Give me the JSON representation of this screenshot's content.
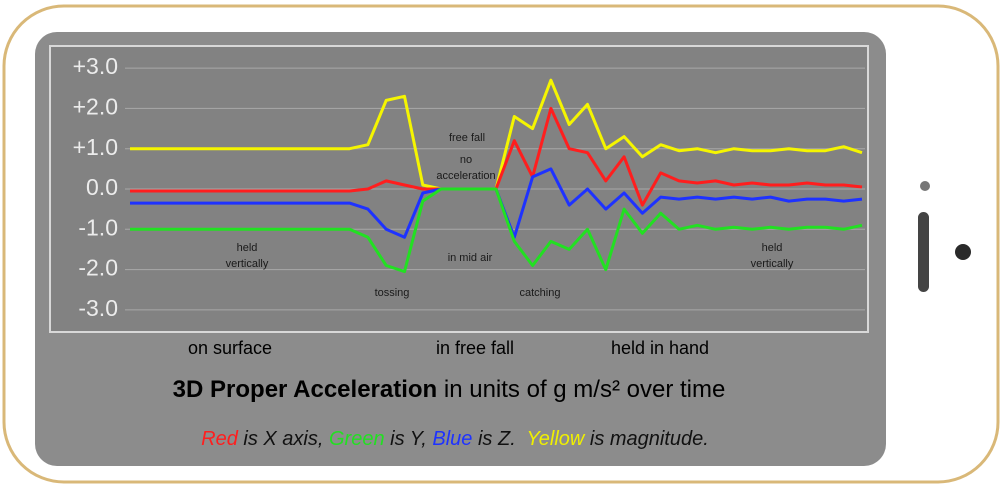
{
  "chart_data": {
    "type": "line",
    "title_bold": "3D Proper Acceleration",
    "title_rest": " in units of g m/s² over time",
    "caption": [
      {
        "text": "Red",
        "color": "#ff1e1e"
      },
      {
        "text": " is X axis, ",
        "color": "#111111"
      },
      {
        "text": "Green",
        "color": "#22e022"
      },
      {
        "text": " is Y, ",
        "color": "#111111"
      },
      {
        "text": "Blue",
        "color": "#1e32ff"
      },
      {
        "text": " is Z.  ",
        "color": "#111111"
      },
      {
        "text": "Yellow",
        "color": "#f0f000"
      },
      {
        "text": " is magnitude.",
        "color": "#111111"
      }
    ],
    "phases": [
      "on surface",
      "in free fall",
      "held in hand"
    ],
    "annotations": [
      [
        "held",
        "vertically"
      ],
      [
        "tossing"
      ],
      [
        "in mid air"
      ],
      [
        "free fall"
      ],
      [
        "no",
        "acceleration"
      ],
      [
        "catching"
      ],
      [
        "held",
        "vertically"
      ]
    ],
    "ylim": [
      -3.5,
      3.5
    ],
    "yticks": [
      {
        "value": 3,
        "label": "+3.0"
      },
      {
        "value": 2,
        "label": "+2.0"
      },
      {
        "value": 1,
        "label": "+1.0"
      },
      {
        "value": 0,
        "label": "0.0"
      },
      {
        "value": -1,
        "label": "-1.0"
      },
      {
        "value": -2,
        "label": "-2.0"
      },
      {
        "value": -3,
        "label": "-3.0"
      }
    ],
    "grid": true,
    "series": [
      {
        "color": "#f5f500",
        "values": [
          1.0,
          1.0,
          1.0,
          1.0,
          1.0,
          1.0,
          1.0,
          1.0,
          1.0,
          1.0,
          1.0,
          1.0,
          1.0,
          1.1,
          2.2,
          2.3,
          0.1,
          0,
          0,
          0,
          0,
          1.8,
          1.5,
          2.7,
          1.6,
          2.1,
          1.0,
          1.3,
          0.8,
          1.1,
          0.95,
          1.0,
          0.9,
          1.0,
          0.95,
          0.95,
          1.0,
          0.95,
          0.95,
          1.05,
          0.9
        ]
      },
      {
        "color": "#ff1e1e",
        "values": [
          -0.05,
          -0.05,
          -0.05,
          -0.05,
          -0.05,
          -0.05,
          -0.05,
          -0.05,
          -0.05,
          -0.05,
          -0.05,
          -0.05,
          -0.05,
          0.0,
          0.2,
          0.1,
          0,
          0,
          0,
          0,
          0,
          1.2,
          0.3,
          2.0,
          1.0,
          0.9,
          0.2,
          0.8,
          -0.4,
          0.4,
          0.2,
          0.15,
          0.2,
          0.1,
          0.15,
          0.1,
          0.1,
          0.15,
          0.1,
          0.1,
          0.05
        ]
      },
      {
        "color": "#1e32ff",
        "values": [
          -0.35,
          -0.35,
          -0.35,
          -0.35,
          -0.35,
          -0.35,
          -0.35,
          -0.35,
          -0.35,
          -0.35,
          -0.35,
          -0.35,
          -0.35,
          -0.5,
          -1.0,
          -1.2,
          -0.1,
          0,
          0,
          0,
          0,
          -1.2,
          0.3,
          0.5,
          -0.4,
          0.0,
          -0.5,
          -0.1,
          -0.6,
          -0.2,
          -0.25,
          -0.2,
          -0.25,
          -0.2,
          -0.25,
          -0.2,
          -0.3,
          -0.25,
          -0.25,
          -0.3,
          -0.25
        ]
      },
      {
        "color": "#22e022",
        "values": [
          -1.0,
          -1.0,
          -1.0,
          -1.0,
          -1.0,
          -1.0,
          -1.0,
          -1.0,
          -1.0,
          -1.0,
          -1.0,
          -1.0,
          -1.0,
          -1.2,
          -1.9,
          -2.05,
          -0.3,
          0,
          0,
          0,
          0,
          -1.3,
          -1.9,
          -1.3,
          -1.5,
          -1.0,
          -2.0,
          -0.5,
          -1.1,
          -0.6,
          -1.0,
          -0.9,
          -1.0,
          -0.95,
          -1.0,
          -0.95,
          -1.0,
          -0.95,
          -0.95,
          -1.0,
          -0.9
        ]
      }
    ]
  }
}
